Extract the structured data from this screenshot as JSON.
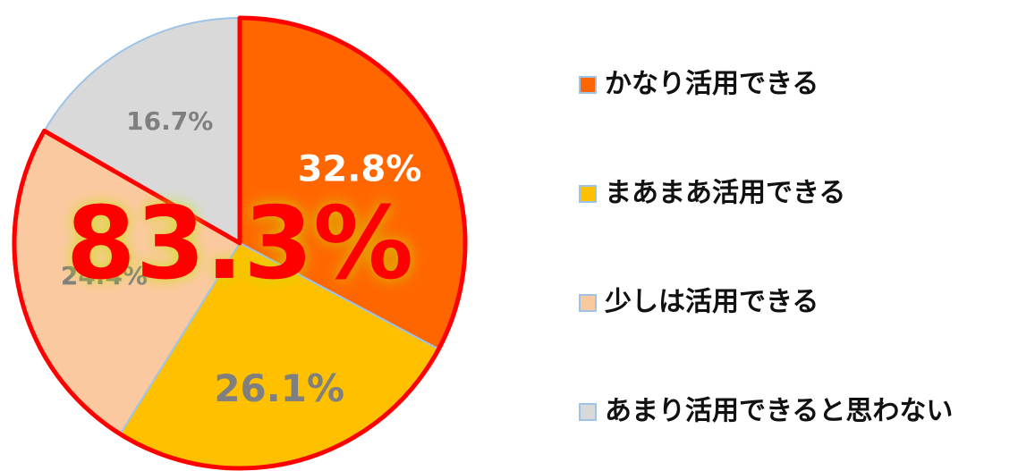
{
  "chart_data": {
    "type": "pie",
    "categories": [
      "かなり活用できる",
      "まあまあ活用できる",
      "少しは活用できる",
      "あまり活用できると思わない"
    ],
    "values": [
      32.8,
      26.1,
      24.4,
      16.7
    ],
    "value_labels": [
      "32.8%",
      "26.1%",
      "24.4%",
      "16.7%"
    ],
    "colors": [
      "#ff6600",
      "#ffc000",
      "#fbc9a0",
      "#d9d9d9"
    ],
    "value_label_colors": [
      "#ffffff",
      "#7f7f7f",
      "#7f7f7f",
      "#7f7f7f"
    ],
    "annotation": "83.3%",
    "annotation_color": "#ff0000",
    "legend": "right"
  }
}
